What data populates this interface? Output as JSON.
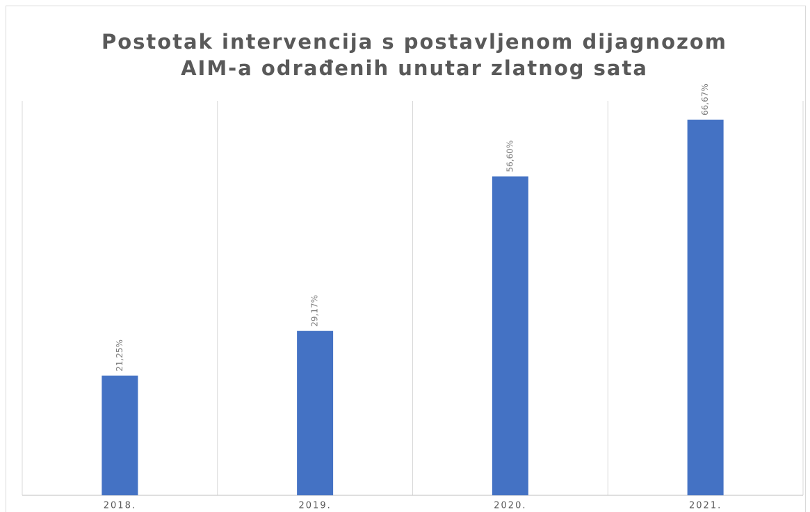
{
  "chart_data": {
    "type": "bar",
    "title": [
      "Postotak intervencija s postavljenom dijagnozom",
      "AIM-a odrađenih unutar zlatnog sata"
    ],
    "categories": [
      "2018.",
      "2019.",
      "2020.",
      "2021."
    ],
    "values": [
      21.25,
      29.17,
      56.6,
      66.67
    ],
    "value_labels": [
      "21,25%",
      "29,17%",
      "56,60%",
      "66,67%"
    ],
    "color": "#4472c4",
    "ylim": [
      0,
      70
    ]
  }
}
